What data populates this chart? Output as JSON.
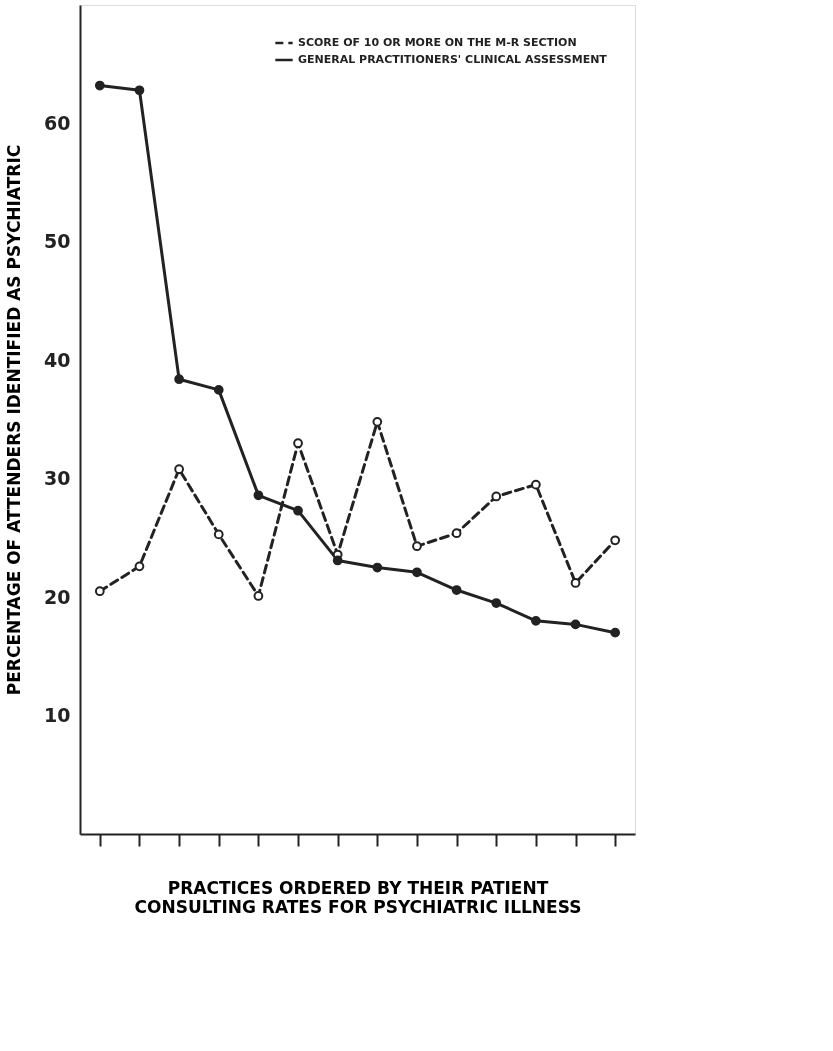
{
  "chart_data": {
    "type": "line",
    "xlabel": "PRACTICES ORDERED BY THEIR PATIENT\nCONSULTING RATES FOR PSYCHIATRIC ILLNESS",
    "ylabel": "PERCENTAGE OF ATTENDERS IDENTIFIED AS PSYCHIATRIC",
    "categories": [
      null,
      null,
      null,
      null,
      null,
      null,
      null,
      null,
      null,
      null,
      null,
      null,
      null,
      null
    ],
    "series": [
      {
        "name": "SCORE OF 10 OR MORE ON THE M-R SECTION",
        "color": "#222222",
        "line_style": "dashed",
        "values": [
          20.5,
          22.6,
          30.8,
          25.3,
          20.1,
          33.0,
          23.6,
          34.8,
          24.3,
          25.4,
          28.5,
          29.5,
          21.2,
          24.8
        ]
      },
      {
        "name": "GENERAL PRACTITIONERS' CLINICAL ASSESSMENT",
        "color": "#222222",
        "line_style": "solid",
        "values": [
          63.2,
          62.8,
          38.4,
          37.5,
          28.6,
          27.3,
          23.1,
          22.5,
          22.1,
          20.6,
          19.5,
          18.0,
          17.7,
          17.0
        ]
      }
    ],
    "ylim": [
      0,
      70
    ],
    "yticks": [
      10,
      20,
      30,
      40,
      50,
      60
    ],
    "marker": "circle",
    "legend": "top right",
    "grid": false
  }
}
